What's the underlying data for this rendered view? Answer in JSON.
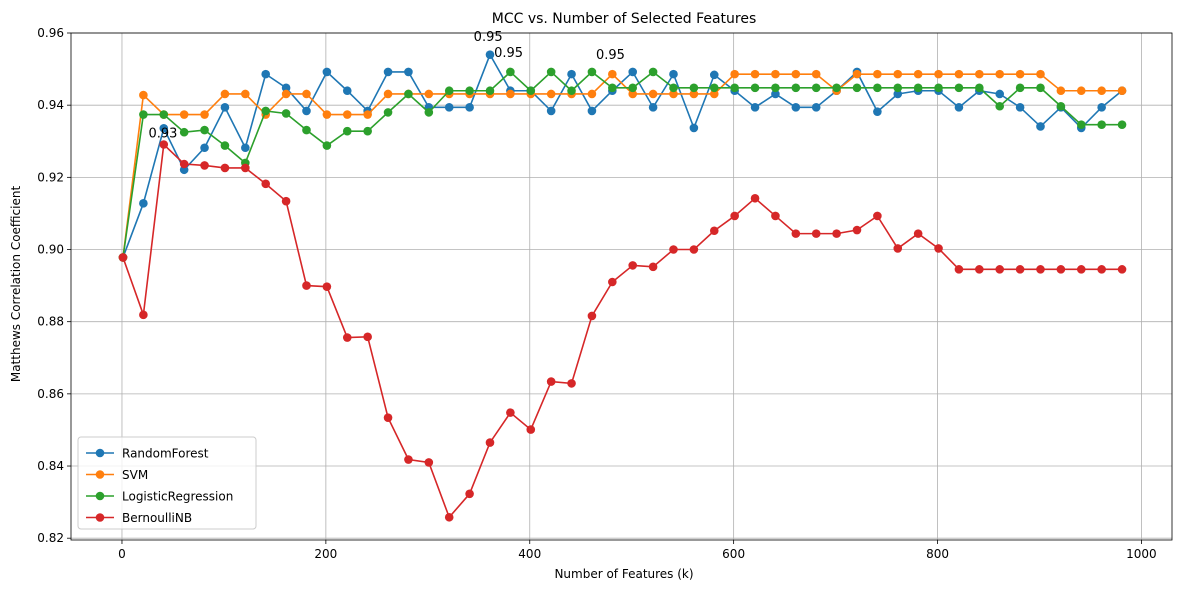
{
  "chart_data": {
    "type": "line",
    "title": "MCC vs. Number of Selected Features",
    "xlabel": "Number of Features (k)",
    "ylabel": "Matthews Correlation Coefficient",
    "xlim": [
      -50,
      1030
    ],
    "ylim": [
      0.8195,
      0.96
    ],
    "xticks": [
      0,
      200,
      400,
      600,
      800,
      1000
    ],
    "xtick_labels": [
      "0",
      "200",
      "400",
      "600",
      "800",
      "1000"
    ],
    "yticks": [
      0.82,
      0.84,
      0.86,
      0.88,
      0.9,
      0.92,
      0.94,
      0.96
    ],
    "ytick_labels": [
      "0.82",
      "0.84",
      "0.86",
      "0.88",
      "0.90",
      "0.92",
      "0.94",
      "0.96"
    ],
    "grid": true,
    "legend_position": "lower-left",
    "x": [
      1,
      21,
      41,
      61,
      81,
      101,
      121,
      141,
      161,
      181,
      201,
      221,
      241,
      261,
      281,
      301,
      321,
      341,
      361,
      381,
      401,
      421,
      441,
      461,
      481,
      501,
      521,
      541,
      561,
      581,
      601,
      621,
      641,
      661,
      681,
      701,
      721,
      741,
      761,
      781,
      801,
      821,
      841,
      861,
      881,
      901,
      921,
      941,
      961,
      981
    ],
    "series": [
      {
        "name": "RandomForest",
        "color": "#1f77b4",
        "values": [
          0.8978,
          0.9128,
          0.9336,
          0.9221,
          0.9282,
          0.9394,
          0.9282,
          0.9486,
          0.9448,
          0.9384,
          0.9492,
          0.944,
          0.9384,
          0.9492,
          0.9492,
          0.9394,
          0.9394,
          0.9394,
          0.954,
          0.944,
          0.944,
          0.9384,
          0.9486,
          0.9384,
          0.944,
          0.9492,
          0.9394,
          0.9486,
          0.9337,
          0.9484,
          0.944,
          0.9394,
          0.9431,
          0.9394,
          0.9394,
          0.944,
          0.9492,
          0.9382,
          0.9431,
          0.944,
          0.944,
          0.9394,
          0.944,
          0.9431,
          0.9394,
          0.9341,
          0.9394,
          0.9337,
          0.9394,
          0.944
        ]
      },
      {
        "name": "SVM",
        "color": "#ff7f0e",
        "values": [
          0.8978,
          0.9428,
          0.9374,
          0.9374,
          0.9374,
          0.9431,
          0.9431,
          0.9374,
          0.9431,
          0.9431,
          0.9374,
          0.9374,
          0.9374,
          0.9431,
          0.9431,
          0.9431,
          0.9431,
          0.9431,
          0.9431,
          0.9431,
          0.9431,
          0.9431,
          0.9431,
          0.9431,
          0.9486,
          0.9431,
          0.9431,
          0.9431,
          0.9431,
          0.9431,
          0.9486,
          0.9486,
          0.9486,
          0.9486,
          0.9486,
          0.944,
          0.9486,
          0.9486,
          0.9486,
          0.9486,
          0.9486,
          0.9486,
          0.9486,
          0.9486,
          0.9486,
          0.9486,
          0.944,
          0.944,
          0.944,
          0.944
        ]
      },
      {
        "name": "LogisticRegression",
        "color": "#2ca02c",
        "values": [
          0.8978,
          0.9374,
          0.9374,
          0.9325,
          0.9331,
          0.9288,
          0.924,
          0.9384,
          0.9377,
          0.9331,
          0.9288,
          0.9328,
          0.9328,
          0.938,
          0.9431,
          0.938,
          0.944,
          0.944,
          0.944,
          0.9492,
          0.944,
          0.9492,
          0.944,
          0.9492,
          0.9448,
          0.9448,
          0.9492,
          0.9448,
          0.9448,
          0.9448,
          0.9448,
          0.9448,
          0.9448,
          0.9448,
          0.9448,
          0.9448,
          0.9448,
          0.9448,
          0.9448,
          0.9448,
          0.9448,
          0.9448,
          0.9448,
          0.9397,
          0.9448,
          0.9448,
          0.9397,
          0.9346,
          0.9346,
          0.9346
        ]
      },
      {
        "name": "BernoulliNB",
        "color": "#d62728",
        "values": [
          0.8978,
          0.8819,
          0.9291,
          0.9237,
          0.9233,
          0.9226,
          0.9226,
          0.9182,
          0.9134,
          0.89,
          0.8897,
          0.8756,
          0.8758,
          0.8534,
          0.8418,
          0.841,
          0.8258,
          0.8323,
          0.8465,
          0.8548,
          0.8501,
          0.8634,
          0.8629,
          0.8816,
          0.891,
          0.8956,
          0.8952,
          0.9,
          0.9,
          0.9052,
          0.9093,
          0.9142,
          0.9093,
          0.9044,
          0.9044,
          0.9044,
          0.9054,
          0.9093,
          0.9003,
          0.9044,
          0.9003,
          0.8945,
          0.8945,
          0.8945,
          0.8945,
          0.8945,
          0.8945,
          0.8945,
          0.8945,
          0.8945
        ]
      }
    ],
    "annotations": [
      {
        "text": "0.93",
        "x": 26,
        "y": 0.931
      },
      {
        "text": "0.95",
        "x": 345,
        "y": 0.9578
      },
      {
        "text": "0.95",
        "x": 365,
        "y": 0.9533
      },
      {
        "text": "0.95",
        "x": 465,
        "y": 0.9528
      }
    ]
  }
}
